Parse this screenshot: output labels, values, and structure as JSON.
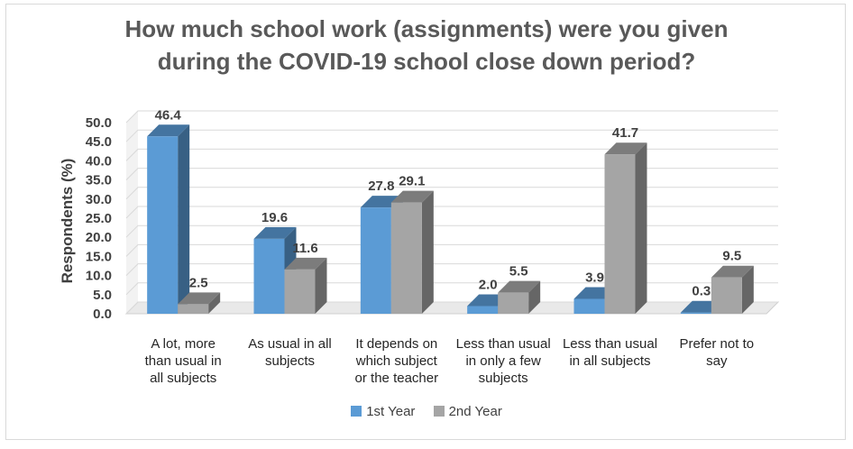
{
  "chart_data": {
    "type": "bar",
    "title_lines": [
      "How much school work (assignments) were you given",
      "during the COVID-19 school close down period?"
    ],
    "ylabel": "Respondents (%)",
    "xlabel": "",
    "ylim": [
      0,
      50
    ],
    "yticks": [
      "0.0",
      "5.0",
      "10.0",
      "15.0",
      "20.0",
      "25.0",
      "30.0",
      "35.0",
      "40.0",
      "45.0",
      "50.0"
    ],
    "grid": true,
    "legend_position": "bottom",
    "categories": [
      [
        "A lot, more",
        "than usual in",
        "all subjects"
      ],
      [
        "As usual in all",
        "subjects"
      ],
      [
        "It depends on",
        "which subject",
        "or the teacher"
      ],
      [
        "Less than usual",
        "in only a few",
        "subjects"
      ],
      [
        "Less than usual",
        "in all subjects"
      ],
      [
        "Prefer not to",
        "say"
      ]
    ],
    "series": [
      {
        "name": "1st Year",
        "color": "#5b9bd5",
        "values": [
          46.4,
          19.6,
          27.8,
          2.0,
          3.9,
          0.3
        ],
        "labels": [
          "46.4",
          "19.6",
          "27.8",
          "2.0",
          "3.9",
          "0.3"
        ]
      },
      {
        "name": "2nd Year",
        "color": "#a5a5a5",
        "values": [
          2.5,
          11.6,
          29.1,
          5.5,
          41.7,
          9.5
        ],
        "labels": [
          "2.5",
          "11.6",
          "29.1",
          "5.5",
          "41.7",
          "9.5"
        ]
      }
    ]
  }
}
